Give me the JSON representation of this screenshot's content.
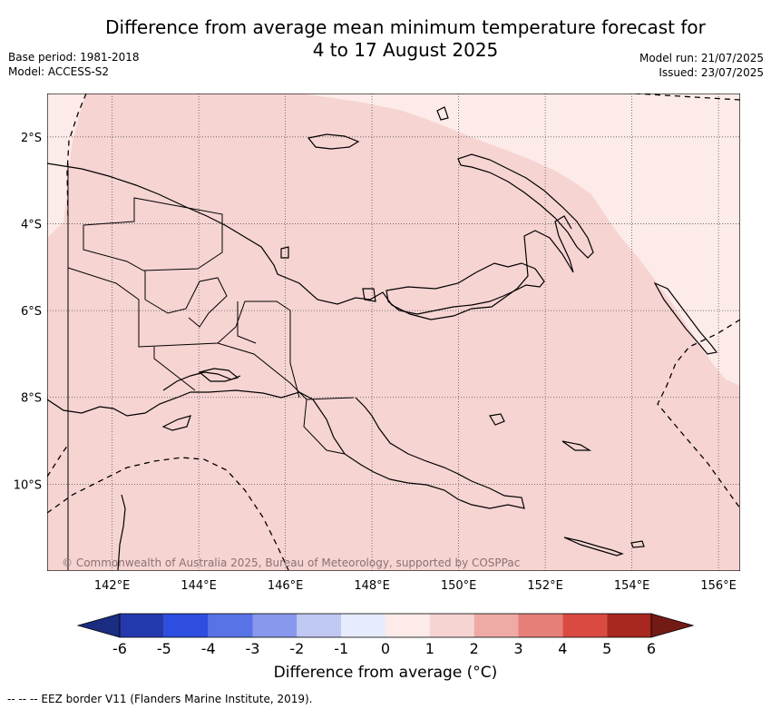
{
  "title": {
    "line1": "Difference from average mean minimum temperature forecast for",
    "line2": "4 to 17 August 2025"
  },
  "meta_left": {
    "base_period": "Base period: 1981-2018",
    "model": "Model: ACCESS-S2"
  },
  "meta_right": {
    "model_run": "Model run: 21/07/2025",
    "issued": "Issued: 23/07/2025"
  },
  "map": {
    "lat_ticks": [
      "2°S",
      "4°S",
      "6°S",
      "8°S",
      "10°S"
    ],
    "lon_ticks": [
      "142°E",
      "144°E",
      "146°E",
      "148°E",
      "150°E",
      "152°E",
      "154°E",
      "156°E"
    ],
    "lat_values": [
      -2,
      -4,
      -6,
      -8,
      -10
    ],
    "lon_values": [
      142,
      144,
      146,
      148,
      150,
      152,
      154,
      156
    ],
    "extent": {
      "lon_min": 140.5,
      "lon_max": 156.5,
      "lat_min": -12.0,
      "lat_max": -1.0
    },
    "base_color": "#f6d4d2",
    "light_color": "#fcebe8",
    "copyright": "© Commonwealth of Australia 2025, Bureau of Meteorology, supported by COSPPac"
  },
  "colorbar": {
    "title": "Difference from average (°C)",
    "tick_labels": [
      "-6",
      "-5",
      "-4",
      "-3",
      "-2",
      "-1",
      "0",
      "1",
      "2",
      "3",
      "4",
      "5",
      "6"
    ],
    "colors": [
      "#2539ae",
      "#2d4ee0",
      "#5873e6",
      "#8898ec",
      "#c0c8f4",
      "#e6ecfb",
      "#fcebe8",
      "#f6d4d2",
      "#efaaa5",
      "#e77f79",
      "#db4a40",
      "#a8271e"
    ],
    "under_color": "#1a2d80",
    "over_color": "#741a15"
  },
  "footnote": "-- -- -- EEZ border V11 (Flanders Marine Institute, 2019)."
}
